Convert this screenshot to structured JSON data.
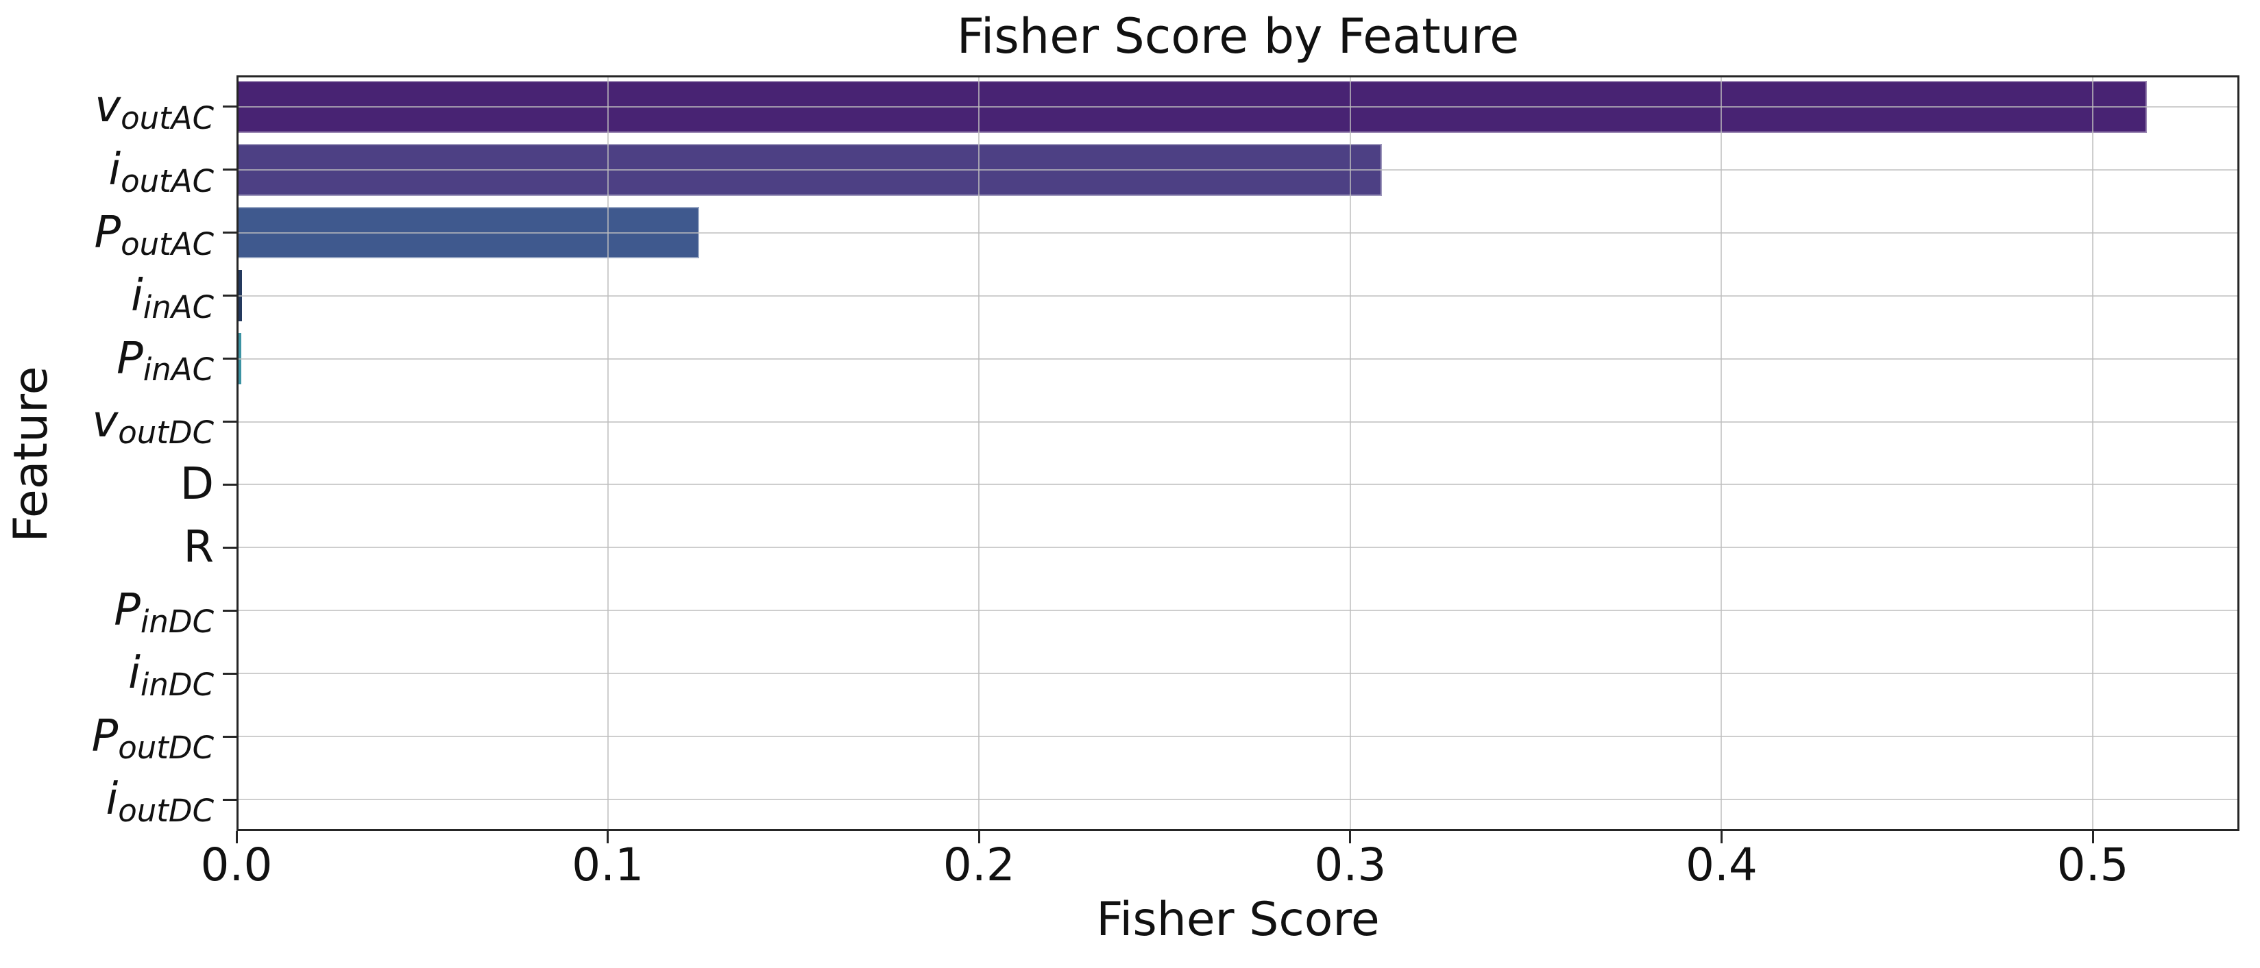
{
  "chart_data": {
    "type": "bar",
    "orientation": "horizontal",
    "title": "Fisher Score by Feature",
    "xlabel": "Fisher Score",
    "ylabel": "Feature",
    "categories": [
      {
        "name": "v_outAC",
        "base": "v",
        "sub": "outAC",
        "italic": true
      },
      {
        "name": "i_outAC",
        "base": "i",
        "sub": "outAC",
        "italic": true
      },
      {
        "name": "P_outAC",
        "base": "P",
        "sub": "outAC",
        "italic": true
      },
      {
        "name": "i_inAC",
        "base": "i",
        "sub": "inAC",
        "italic": true
      },
      {
        "name": "P_inAC",
        "base": "P",
        "sub": "inAC",
        "italic": true
      },
      {
        "name": "v_outDC",
        "base": "v",
        "sub": "outDC",
        "italic": true
      },
      {
        "name": "D",
        "base": "D",
        "sub": "",
        "italic": false
      },
      {
        "name": "R",
        "base": "R",
        "sub": "",
        "italic": false
      },
      {
        "name": "P_inDC",
        "base": "P",
        "sub": "inDC",
        "italic": true
      },
      {
        "name": "i_inDC",
        "base": "i",
        "sub": "inDC",
        "italic": true
      },
      {
        "name": "P_outDC",
        "base": "P",
        "sub": "outDC",
        "italic": true
      },
      {
        "name": "i_outDC",
        "base": "i",
        "sub": "outDC",
        "italic": true
      }
    ],
    "values": [
      0.514,
      0.308,
      0.124,
      0.001,
      0.0008,
      0,
      0,
      0,
      0,
      0,
      0,
      0
    ],
    "bar_colors": [
      "#482373",
      "#4D4084",
      "#3F598E",
      "#24395E",
      "#3C93A3",
      "#2A788E",
      "#21918C",
      "#22A884",
      "#42BE71",
      "#7AD151",
      "#BDDF26",
      "#FDE725"
    ],
    "xlim": [
      0,
      0.5395
    ],
    "xticks": [
      0.0,
      0.1,
      0.2,
      0.3,
      0.4,
      0.5
    ],
    "xtick_labels": [
      "0.0",
      "0.1",
      "0.2",
      "0.3",
      "0.4",
      "0.5"
    ],
    "grid": true,
    "grid_color": "#bebebe",
    "spine_color": "#262626",
    "legend": "none",
    "bar_height_fraction": 0.82
  }
}
